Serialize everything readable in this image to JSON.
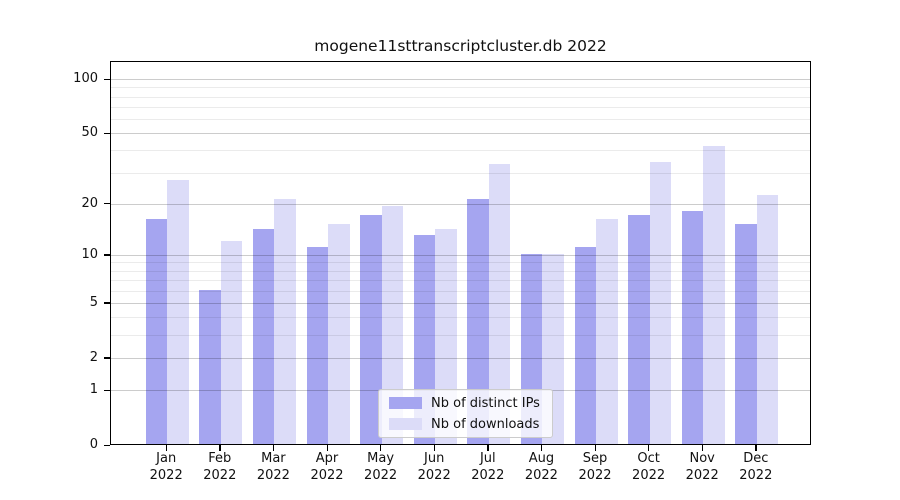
{
  "chart_data": {
    "type": "bar",
    "title": "mogene11sttranscriptcluster.db 2022",
    "categories": [
      "Jan",
      "Feb",
      "Mar",
      "Apr",
      "May",
      "Jun",
      "Jul",
      "Aug",
      "Sep",
      "Oct",
      "Nov",
      "Dec"
    ],
    "category_year": "2022",
    "series": [
      {
        "name": "Nb of distinct IPs",
        "color": "#a5a5f0",
        "values": [
          16,
          6,
          14,
          11,
          17,
          13,
          21,
          10,
          11,
          17,
          18,
          15
        ]
      },
      {
        "name": "Nb of downloads",
        "color": "#dcdcf8",
        "values": [
          27,
          12,
          21,
          15,
          19,
          14,
          33,
          10,
          16,
          34,
          42,
          22
        ]
      }
    ],
    "xlabel": "",
    "ylabel": "",
    "y_axis": {
      "scale": "log1p",
      "tick_labels": [
        "100",
        "50",
        "20",
        "10",
        "5",
        "2",
        "1",
        "0"
      ],
      "ticks": [
        100,
        50,
        20,
        10,
        5,
        2,
        1,
        0
      ],
      "minor_gridlines": [
        3,
        4,
        6,
        7,
        8,
        9,
        30,
        40,
        60,
        70,
        80,
        90
      ],
      "ylim": [
        0,
        126
      ]
    },
    "grid": "on",
    "legend_position": "lower center",
    "colors": {
      "major_gridline": "rgba(0,0,0,0.20)",
      "minor_gridline": "rgba(0,0,0,0.08)",
      "axis": "#000000",
      "text": "#111111"
    }
  }
}
